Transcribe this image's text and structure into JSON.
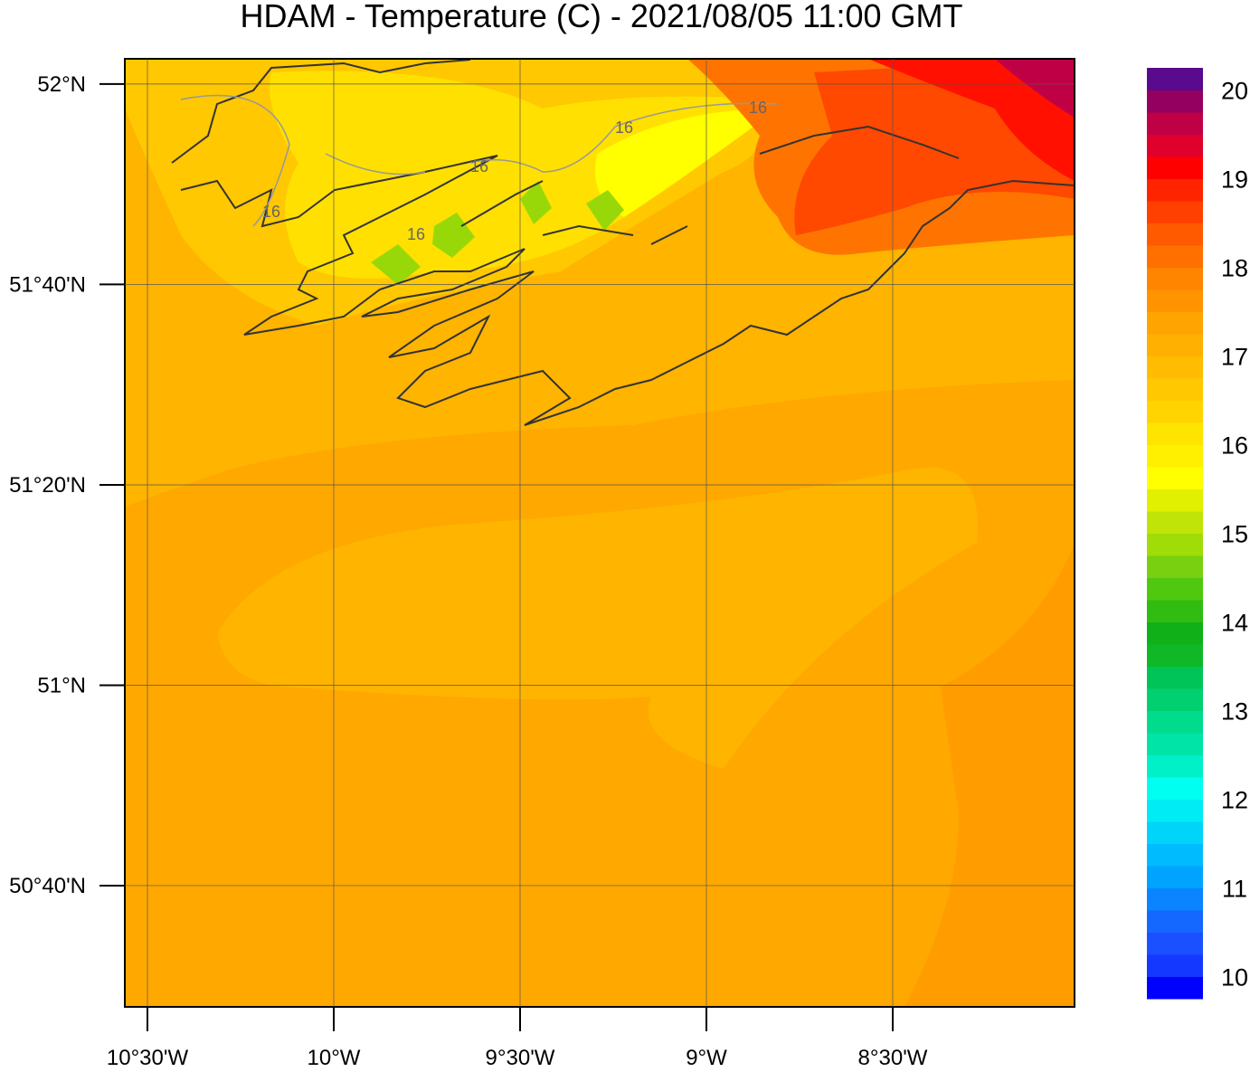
{
  "title": "HDAM - Temperature (C)  -  2021/08/05  11:00 GMT",
  "map": {
    "lat_range": [
      50.465,
      52.042
    ],
    "lon_range": [
      -10.5607,
      -8.0121
    ],
    "lat_ticks": [
      {
        "value": 52,
        "label": "52°N"
      },
      {
        "value": 51.6667,
        "label": "51°40'N"
      },
      {
        "value": 51.3333,
        "label": "51°20'N"
      },
      {
        "value": 51,
        "label": "51°N"
      },
      {
        "value": 50.6667,
        "label": "50°40'N"
      }
    ],
    "lon_ticks": [
      {
        "value": -10.5,
        "label": "10°30'W"
      },
      {
        "value": -10,
        "label": "10°W"
      },
      {
        "value": -9.5,
        "label": "9°30'W"
      },
      {
        "value": -9,
        "label": "9°W"
      },
      {
        "value": -8.5,
        "label": "8°30'W"
      }
    ],
    "contour_labels": [
      "16",
      "16",
      "16",
      "16",
      "16"
    ]
  },
  "colorbar": {
    "range": [
      9.75,
      20.25
    ],
    "ticks": [
      10,
      11,
      12,
      13,
      14,
      15,
      16,
      17,
      18,
      19,
      20
    ],
    "colors": [
      "#0000ff",
      "#1438ff",
      "#1a50ff",
      "#1468ff",
      "#0a84ff",
      "#00a4ff",
      "#00bcff",
      "#00d4f8",
      "#00ecf4",
      "#00fff0",
      "#00f0c8",
      "#00e4a8",
      "#00dc8c",
      "#00d070",
      "#00c458",
      "#10b828",
      "#10b018",
      "#30bc10",
      "#50c810",
      "#78d010",
      "#a0dc08",
      "#c0e408",
      "#e0f000",
      "#ffff00",
      "#fff000",
      "#ffe400",
      "#ffd400",
      "#ffc800",
      "#ffbc00",
      "#ffb000",
      "#ffa400",
      "#ff9400",
      "#ff8400",
      "#ff7000",
      "#ff5a00",
      "#ff4000",
      "#ff2400",
      "#ff0000",
      "#e0002c",
      "#c00044",
      "#940060",
      "#5a0a8c"
    ]
  }
}
